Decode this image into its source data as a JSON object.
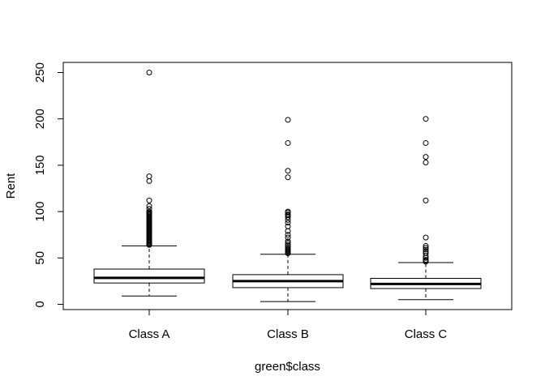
{
  "chart_data": {
    "type": "boxplot",
    "title": "",
    "xlabel": "green$class",
    "ylabel": "Rent",
    "ylim": [
      0,
      250
    ],
    "yticks": [
      0,
      50,
      100,
      150,
      200,
      250
    ],
    "grid": false,
    "categories": [
      "Class A",
      "Class B",
      "Class C"
    ],
    "boxes": [
      {
        "category": "Class A",
        "whisker_low": 9,
        "q1": 23,
        "median": 28.5,
        "q3": 38,
        "whisker_high": 63,
        "outliers": [
          64,
          65,
          66,
          67,
          68,
          69,
          70,
          71,
          72,
          73,
          74,
          75,
          76,
          77,
          78,
          79,
          80,
          81,
          82,
          83,
          84,
          85,
          86,
          87,
          88,
          89,
          90,
          91,
          92,
          93,
          94,
          95,
          96,
          97,
          98,
          99,
          100,
          103,
          106,
          112,
          133,
          138,
          250
        ]
      },
      {
        "category": "Class B",
        "whisker_low": 3,
        "q1": 18,
        "median": 25,
        "q3": 32,
        "whisker_high": 54,
        "outliers": [
          55,
          56,
          57,
          58,
          59,
          60,
          62,
          64,
          66,
          68,
          72,
          75,
          79,
          84,
          88,
          91,
          94,
          96,
          97,
          99,
          100,
          137,
          144,
          174,
          199
        ]
      },
      {
        "category": "Class C",
        "whisker_low": 5,
        "q1": 17,
        "median": 22,
        "q3": 28,
        "whisker_high": 45,
        "outliers": [
          46,
          47,
          48,
          50,
          52,
          55,
          57,
          59,
          61,
          63,
          72,
          112,
          153,
          159,
          174,
          200
        ]
      }
    ]
  }
}
